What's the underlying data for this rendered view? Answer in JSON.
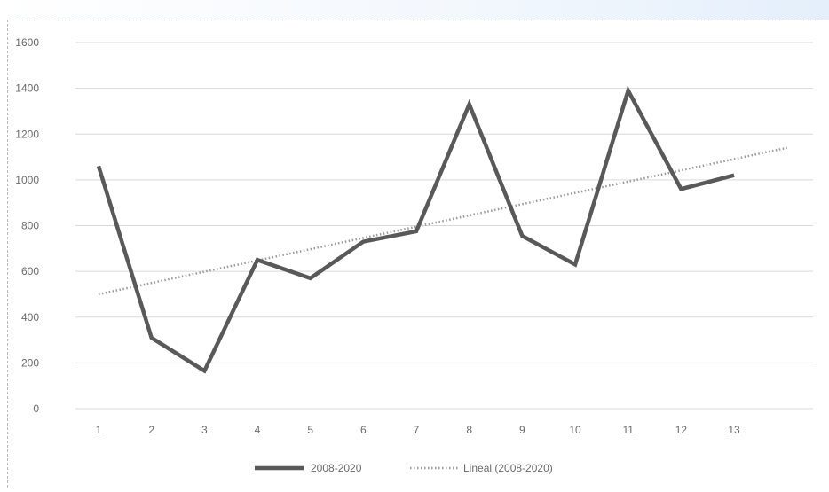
{
  "chart_data": {
    "type": "line",
    "x": [
      1,
      2,
      3,
      4,
      5,
      6,
      7,
      8,
      9,
      10,
      11,
      12,
      13
    ],
    "xlim": [
      1,
      14
    ],
    "ylim": [
      0,
      1600
    ],
    "yticks": [
      0,
      200,
      400,
      600,
      800,
      1000,
      1200,
      1400,
      1600
    ],
    "xticks": [
      1,
      2,
      3,
      4,
      5,
      6,
      7,
      8,
      9,
      10,
      11,
      12,
      13
    ],
    "grid": true,
    "legend_position": "bottom",
    "series": [
      {
        "name": "2008-2020",
        "values": [
          1060,
          310,
          165,
          650,
          570,
          730,
          775,
          1330,
          755,
          630,
          1390,
          960,
          1020
        ],
        "color": "#595959",
        "style": "solid"
      },
      {
        "name": "Lineal (2008-2020)",
        "type": "trendline",
        "x": [
          1,
          14
        ],
        "values": [
          500,
          1140
        ],
        "color": "#9a9a9a",
        "style": "dotted"
      }
    ]
  }
}
